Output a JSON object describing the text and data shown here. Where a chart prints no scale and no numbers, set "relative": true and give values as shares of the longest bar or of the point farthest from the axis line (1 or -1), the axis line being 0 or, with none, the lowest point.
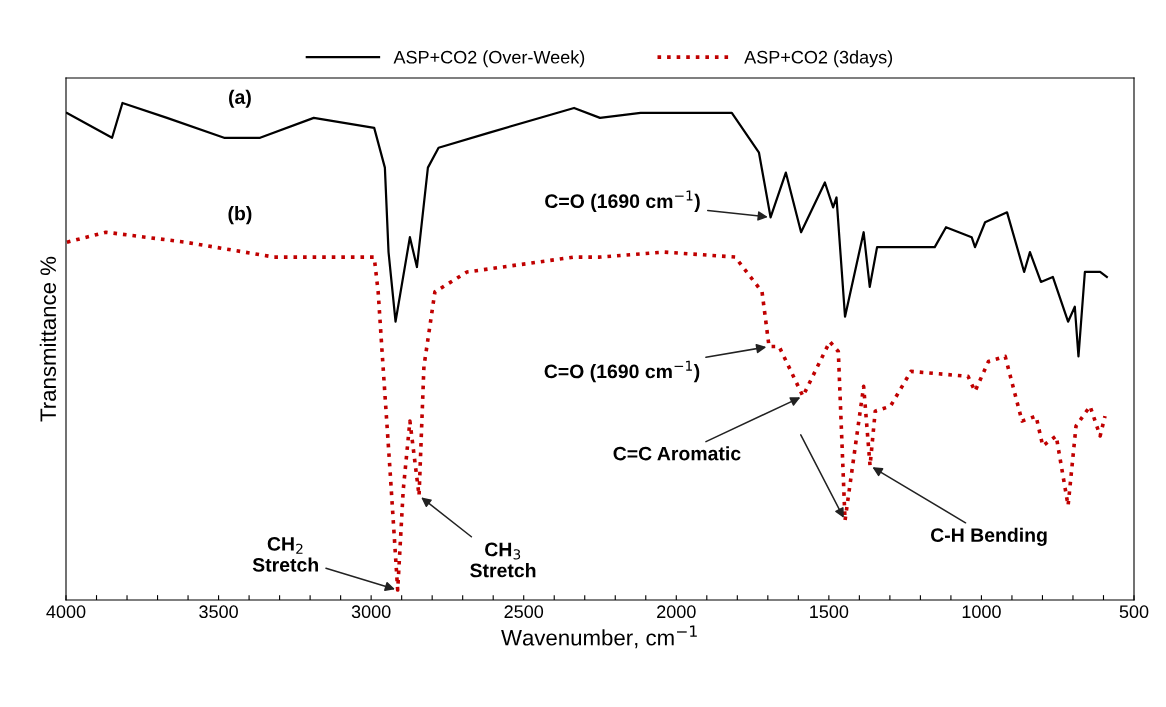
{
  "chart_data": {
    "type": "line",
    "relative": true,
    "xlabel": "Wavenumber, cm$^{−1}$",
    "ylabel": "Transmittance %",
    "xlim": [
      4000,
      500
    ],
    "xticks": [
      4000,
      {
        "value": 3900,
        "label": null
      },
      {
        "value": 3800,
        "label": null
      },
      {
        "value": 3700,
        "label": null
      },
      {
        "value": 3600,
        "label": null
      },
      3500,
      {
        "value": 3400,
        "label": null
      },
      {
        "value": 3300,
        "label": null
      },
      {
        "value": 3200,
        "label": null
      },
      {
        "value": 3100,
        "label": null
      },
      3000,
      {
        "value": 2900,
        "label": null
      },
      {
        "value": 2800,
        "label": null
      },
      {
        "value": 2700,
        "label": null
      },
      {
        "value": 2600,
        "label": null
      },
      2500,
      {
        "value": 2400,
        "label": null
      },
      {
        "value": 2300,
        "label": null
      },
      {
        "value": 2200,
        "label": null
      },
      {
        "value": 2100,
        "label": null
      },
      2000,
      {
        "value": 1900,
        "label": null
      },
      {
        "value": 1800,
        "label": null
      },
      {
        "value": 1700,
        "label": null
      },
      {
        "value": 1600,
        "label": null
      },
      1500,
      {
        "value": 1400,
        "label": null
      },
      {
        "value": 1300,
        "label": null
      },
      {
        "value": 1200,
        "label": null
      },
      {
        "value": 1100,
        "label": null
      },
      1000,
      {
        "value": 900,
        "label": null
      },
      {
        "value": 800,
        "label": null
      },
      {
        "value": 700,
        "label": null
      },
      {
        "value": 600,
        "label": null
      },
      500
    ],
    "legend": "top",
    "grid": false,
    "series": [
      {
        "name": "ASP+CO2 (Over-Week)",
        "color": "#000000",
        "line_style": "solid",
        "marker": "none",
        "x": [
          3997,
          3849,
          3815,
          3669,
          3482,
          3364,
          3188,
          2990,
          2955,
          2943,
          2920,
          2873,
          2850,
          2814,
          2779,
          2615,
          2335,
          2250,
          2117,
          1818,
          1729,
          1691,
          1641,
          1591,
          1513,
          1486,
          1475,
          1447,
          1386,
          1366,
          1342,
          1153,
          1116,
          1032,
          1021,
          988,
          916,
          860,
          841,
          805,
          766,
          716,
          694,
          682,
          661,
          611,
          589
        ],
        "values": [
          0.98,
          0.93,
          1,
          0.97,
          0.93,
          0.93,
          0.97,
          0.95,
          0.87,
          0.7,
          0.56,
          0.73,
          0.67,
          0.87,
          0.91,
          0.94,
          0.99,
          0.97,
          0.98,
          0.98,
          0.9,
          0.77,
          0.86,
          0.74,
          0.84,
          0.79,
          0.81,
          0.57,
          0.74,
          0.63,
          0.71,
          0.71,
          0.75,
          0.73,
          0.71,
          0.76,
          0.78,
          0.66,
          0.7,
          0.64,
          0.65,
          0.56,
          0.59,
          0.49,
          0.66,
          0.66,
          0.65
        ]
      },
      {
        "name": "ASP+CO2 (3days)",
        "color": "#c00000",
        "line_style": "dotted",
        "marker": "none",
        "x": [
          3997,
          3869,
          3610,
          3318,
          2990,
          2977,
          2961,
          2938,
          2913,
          2895,
          2873,
          2843,
          2827,
          2791,
          2686,
          2335,
          2250,
          2040,
          1807,
          1719,
          1696,
          1663,
          1585,
          1497,
          1469,
          1447,
          1386,
          1365,
          1348,
          1298,
          1231,
          1044,
          1021,
          977,
          922,
          867,
          821,
          799,
          755,
          716,
          690,
          644,
          611,
          595
        ],
        "values": [
          0.72,
          0.74,
          0.72,
          0.69,
          0.69,
          0.62,
          0.47,
          0.26,
          0.02,
          0.22,
          0.36,
          0.21,
          0.47,
          0.62,
          0.66,
          0.69,
          0.69,
          0.7,
          0.69,
          0.62,
          0.51,
          0.51,
          0.41,
          0.52,
          0.5,
          0.16,
          0.43,
          0.27,
          0.38,
          0.39,
          0.46,
          0.45,
          0.42,
          0.48,
          0.49,
          0.36,
          0.37,
          0.31,
          0.33,
          0.19,
          0.35,
          0.39,
          0.33,
          0.37
        ]
      }
    ],
    "annotations": [
      {
        "text": "(a)",
        "x": 3430,
        "y": 0.93
      },
      {
        "text": "(b)",
        "x": 3430,
        "y": 0.71
      },
      {
        "text": "C=O (1690 cm$^{−1}$)",
        "x": 1691,
        "y": 0.77
      },
      {
        "text": "C=O (1690 cm$^{−1}$)",
        "x": 1696,
        "y": 0.51
      },
      {
        "text": "C=C Aromatic",
        "x": 1585,
        "y": 0.41
      },
      {
        "text": "C-H Bending",
        "x": 1365,
        "y": 0.27
      },
      {
        "text": "CH$_{2}$\nStretch",
        "x": 2913,
        "y": 0.02
      },
      {
        "text": "CH$_{3}$\nStretch",
        "x": 2843,
        "y": 0.21
      }
    ]
  }
}
